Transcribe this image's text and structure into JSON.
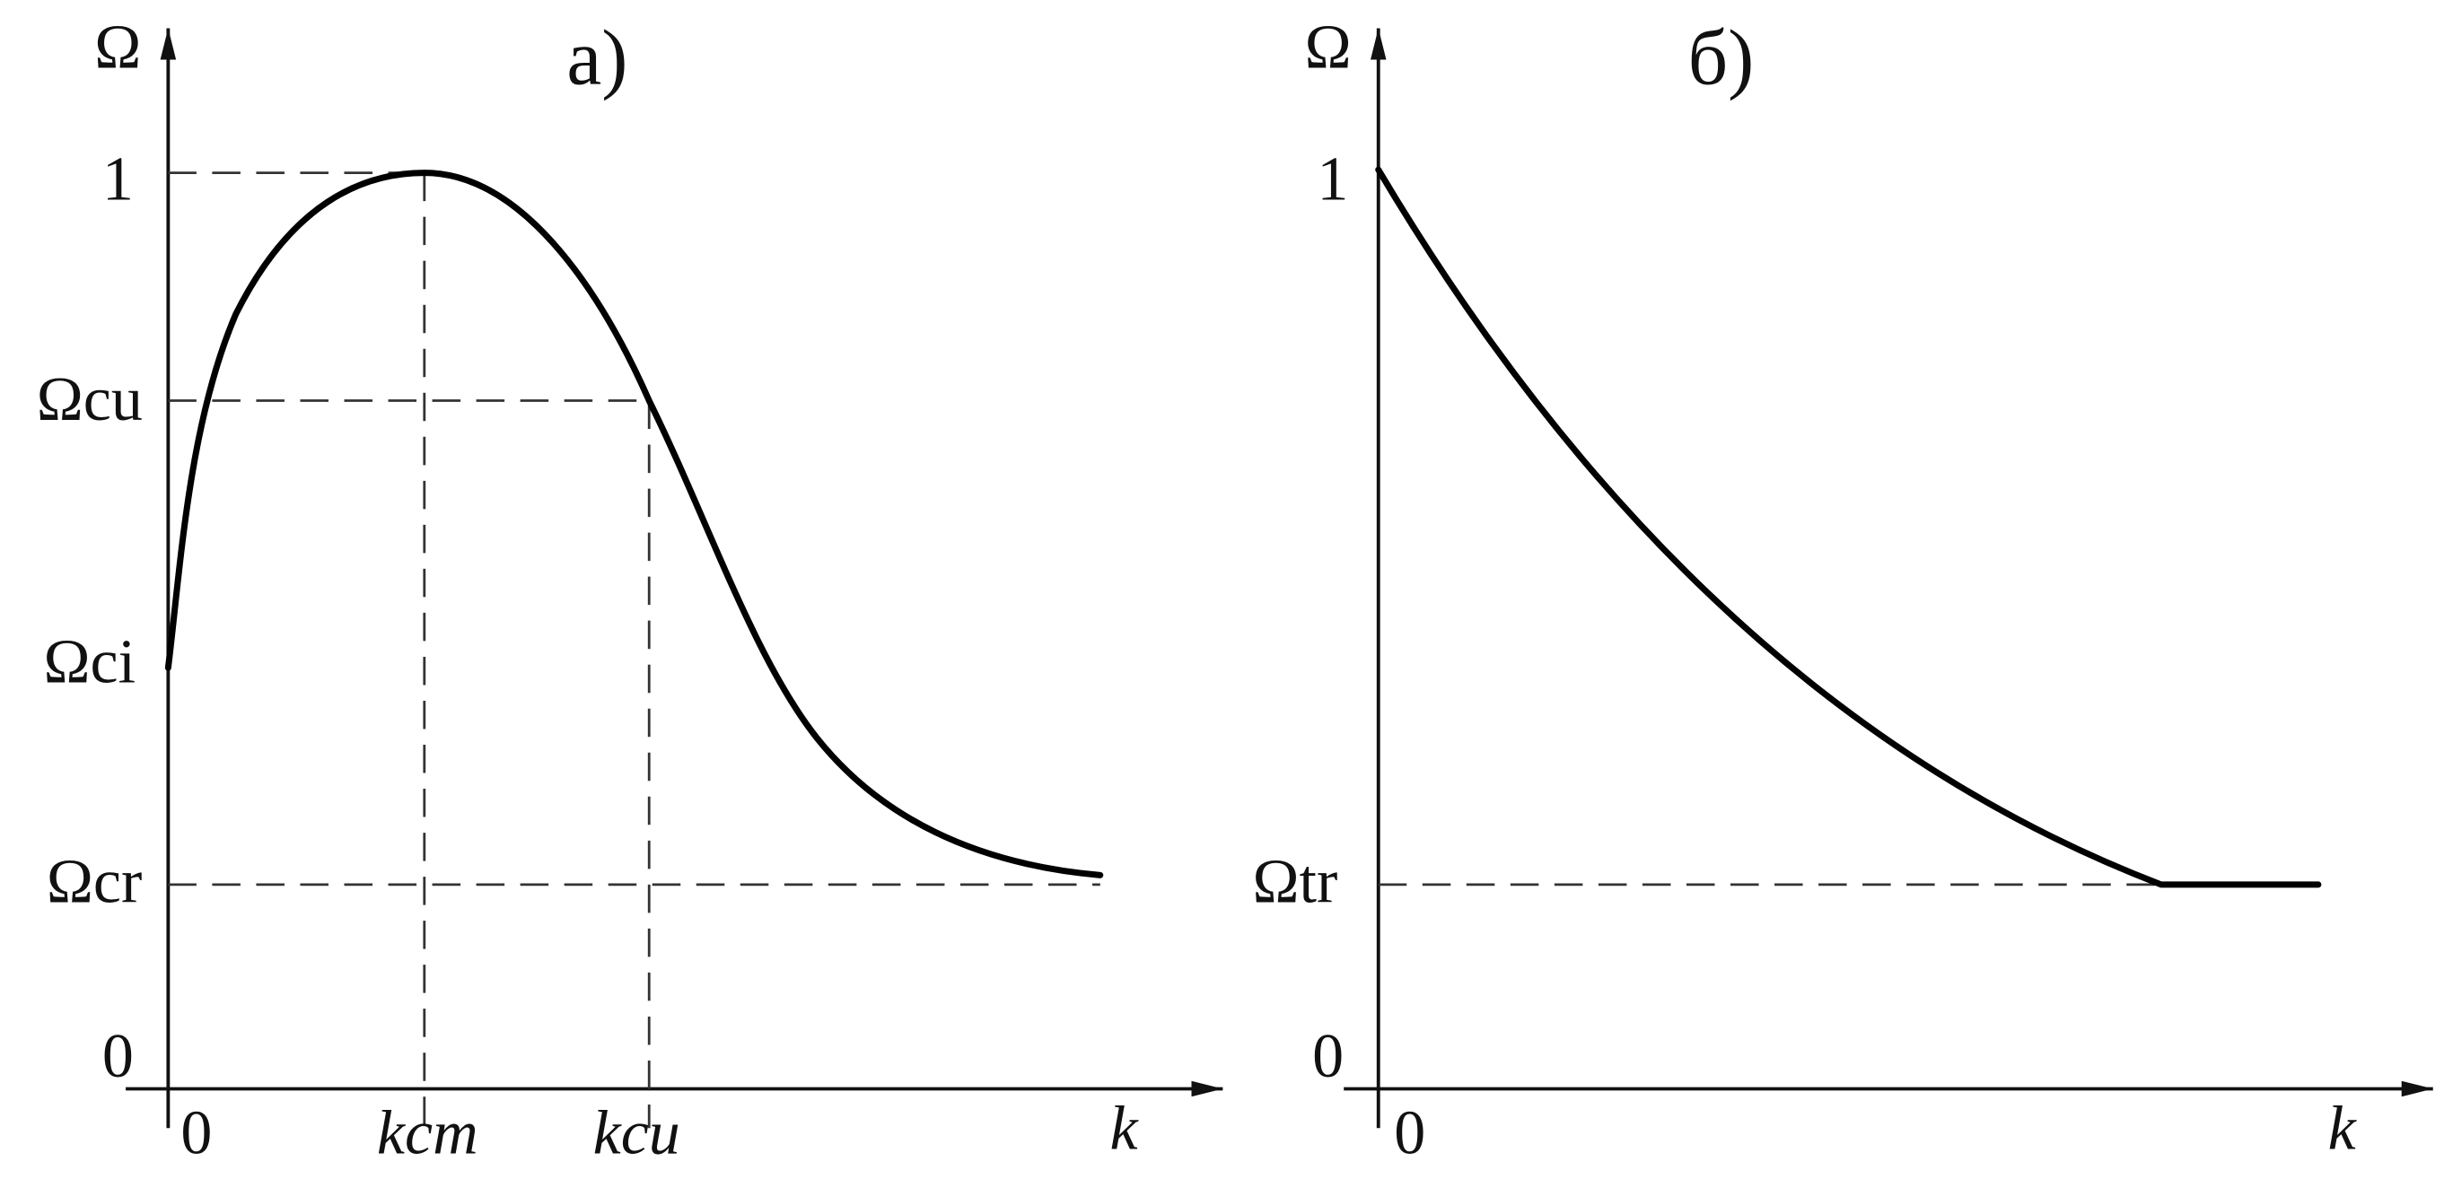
{
  "panels": [
    {
      "title": "а)",
      "y_label": "Ω",
      "x_label": "k",
      "y_ticks": [
        "1",
        "Ωcu",
        "Ωci",
        "Ωcr",
        "0"
      ],
      "x_ticks": [
        "0",
        "kcm",
        "kcu"
      ]
    },
    {
      "title": "б)",
      "y_label": "Ω",
      "x_label": "k",
      "y_ticks": [
        "1",
        "Ωtr",
        "0"
      ],
      "x_ticks": [
        "0"
      ]
    }
  ]
}
